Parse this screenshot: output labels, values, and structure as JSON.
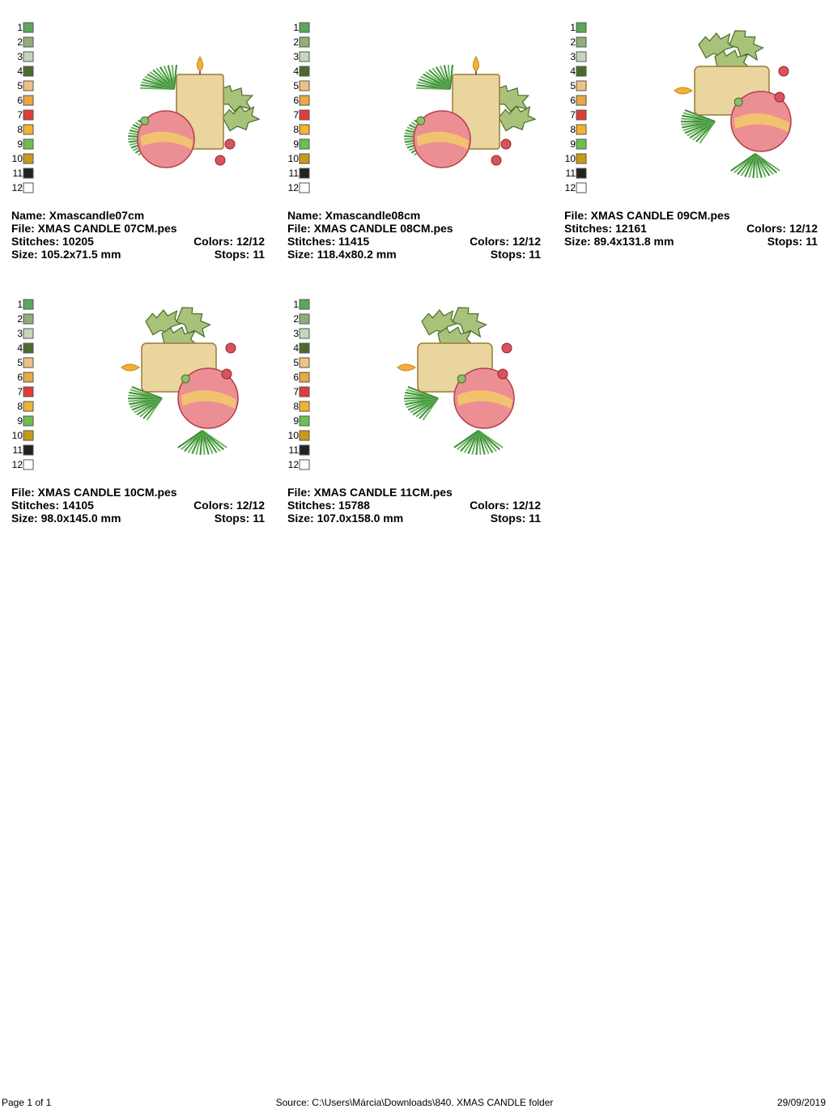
{
  "palette": [
    {
      "number": "1",
      "color": "#5aa85a"
    },
    {
      "number": "2",
      "color": "#8fae7a"
    },
    {
      "number": "3",
      "color": "#c5d6c0"
    },
    {
      "number": "4",
      "color": "#4b6b2a"
    },
    {
      "number": "5",
      "color": "#eec283"
    },
    {
      "number": "6",
      "color": "#e9a843"
    },
    {
      "number": "7",
      "color": "#e03c3c"
    },
    {
      "number": "8",
      "color": "#f2b232"
    },
    {
      "number": "9",
      "color": "#6cc050"
    },
    {
      "number": "10",
      "color": "#c89a18"
    },
    {
      "number": "11",
      "color": "#222222"
    },
    {
      "number": "12",
      "color": "#ffffff"
    }
  ],
  "designs": [
    {
      "name": "Name: Xmascandle07cm",
      "file": "File: XMAS CANDLE 07CM.pes",
      "stitches": "Stitches: 10205",
      "size": "Size: 105.2x71.5 mm",
      "colors": "Colors: 12/12",
      "stops": "Stops: 11"
    },
    {
      "name": "Name: Xmascandle08cm",
      "file": "File: XMAS CANDLE 08CM.pes",
      "stitches": "Stitches: 11415",
      "size": "Size: 118.4x80.2 mm",
      "colors": "Colors: 12/12",
      "stops": "Stops: 11"
    },
    {
      "file": "File: XMAS CANDLE 09CM.pes",
      "stitches": "Stitches: 12161",
      "size": "Size: 89.4x131.8 mm",
      "colors": "Colors: 12/12",
      "stops": "Stops: 11"
    },
    {
      "file": "File: XMAS CANDLE 10CM.pes",
      "stitches": "Stitches: 14105",
      "size": "Size: 98.0x145.0 mm",
      "colors": "Colors: 12/12",
      "stops": "Stops: 11"
    },
    {
      "file": "File: XMAS CANDLE 11CM.pes",
      "stitches": "Stitches: 15788",
      "size": "Size: 107.0x158.0 mm",
      "colors": "Colors: 12/12",
      "stops": "Stops: 11"
    }
  ],
  "footer": {
    "page": "Page 1 of 1",
    "source": "Source: C:\\Users\\Márcia\\Downloads\\840. XMAS CANDLE folder",
    "date": "29/09/2019"
  }
}
